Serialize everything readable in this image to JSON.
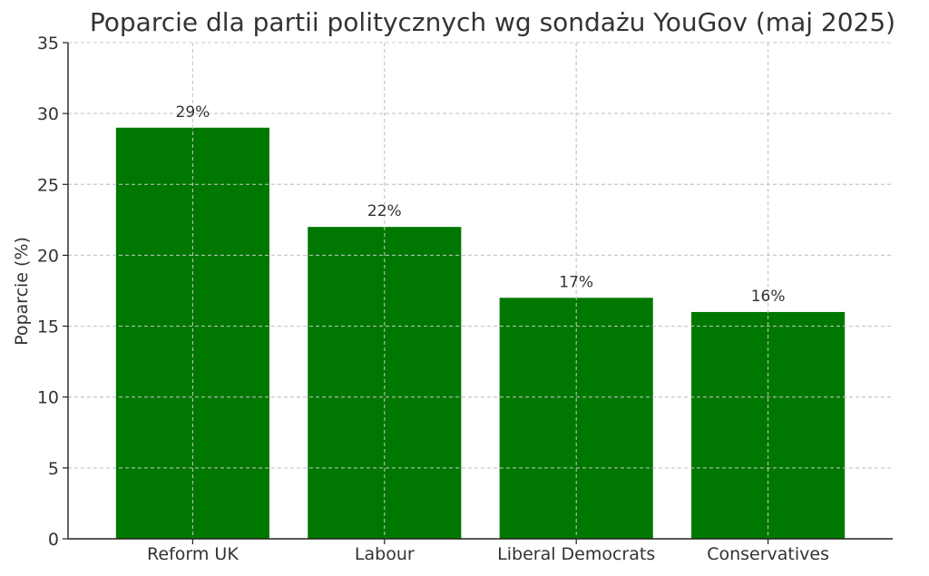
{
  "chart_data": {
    "type": "bar",
    "title": "Poparcie dla partii politycznych wg sondażu YouGov (maj 2025)",
    "xlabel": "",
    "ylabel": "Poparcie (%)",
    "categories": [
      "Reform UK",
      "Labour",
      "Liberal Democrats",
      "Conservatives"
    ],
    "values": [
      29,
      22,
      17,
      16
    ],
    "value_labels": [
      "29%",
      "22%",
      "17%",
      "16%"
    ],
    "ylim": [
      0,
      35
    ],
    "yticks": [
      0,
      5,
      10,
      15,
      20,
      25,
      30,
      35
    ],
    "ytick_labels": [
      "0",
      "5",
      "10",
      "15",
      "20",
      "25",
      "30",
      "35"
    ],
    "grid": true,
    "bar_color": "#007700"
  }
}
